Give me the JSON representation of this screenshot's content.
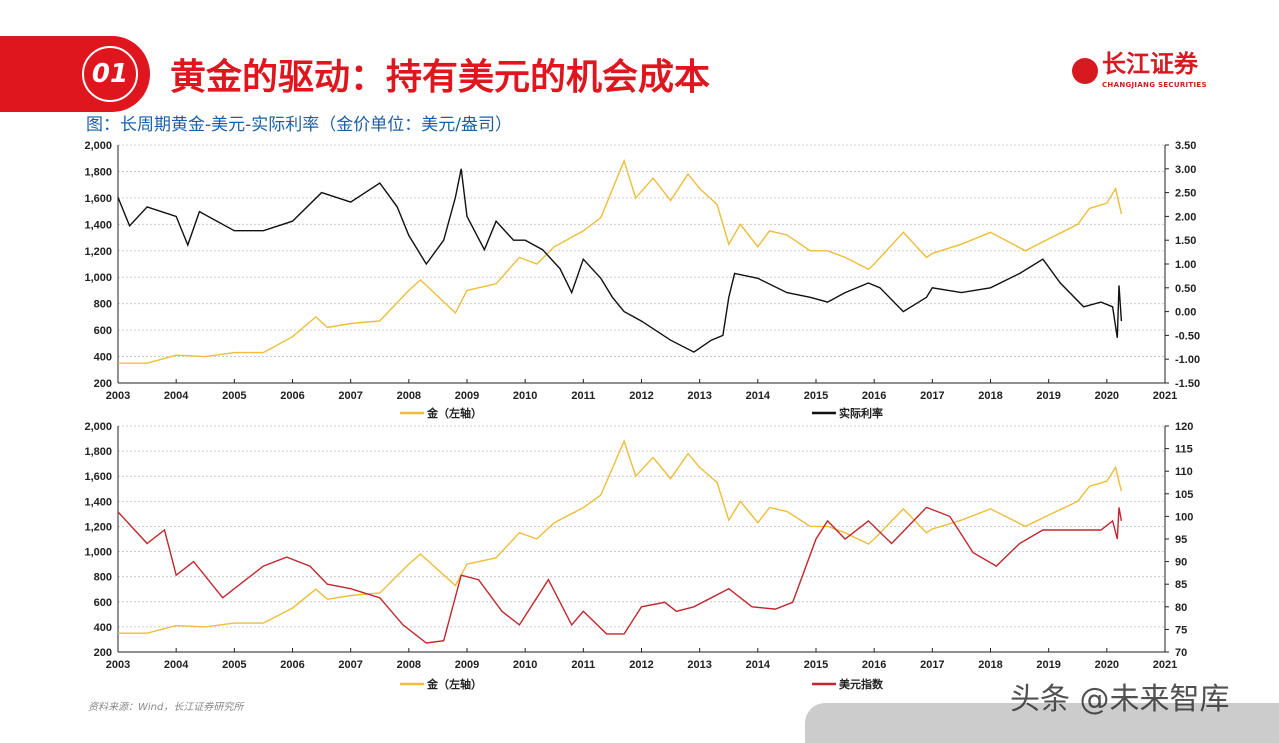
{
  "header": {
    "number": "01",
    "title": "黄金的驱动：持有美元的机会成本",
    "subtitle": "图：长周期黄金-美元-实际利率（金价单位：美元/盎司）",
    "logo_cn": "长江证券",
    "logo_en": "CHANGJIANG SECURITIES"
  },
  "footer": {
    "source": "资料来源：Wind，长江证券研究所",
    "watermark": "头条 @未来智库"
  },
  "colors": {
    "gold": "#eebd3a",
    "real_rate": "#111111",
    "usd": "#c1272d",
    "brand": "#e0161e"
  },
  "chart_data": [
    {
      "type": "line",
      "x_ticks": [
        "2003",
        "2004",
        "2005",
        "2006",
        "2007",
        "2008",
        "2009",
        "2010",
        "2011",
        "2012",
        "2013",
        "2014",
        "2015",
        "2016",
        "2017",
        "2018",
        "2019",
        "2020",
        "2021"
      ],
      "xlim": [
        2003,
        2021
      ],
      "ylim_left": [
        200,
        2000
      ],
      "ylim_right": [
        -1.5,
        3.5
      ],
      "left_ticks": [
        "200",
        "400",
        "600",
        "800",
        "1,000",
        "1,200",
        "1,400",
        "1,600",
        "1,800",
        "2,000"
      ],
      "right_ticks": [
        "-1.50",
        "-1.00",
        "-0.50",
        "0.00",
        "0.50",
        "1.00",
        "1.50",
        "2.00",
        "2.50",
        "3.00",
        "3.50"
      ],
      "grid": true,
      "legend": "bottom",
      "series": [
        {
          "name": "金（左轴）",
          "axis": "left",
          "color": "#eebd3a",
          "points": [
            [
              2003,
              350
            ],
            [
              2003.5,
              350
            ],
            [
              2004,
              410
            ],
            [
              2004.5,
              400
            ],
            [
              2005,
              430
            ],
            [
              2005.5,
              430
            ],
            [
              2006,
              550
            ],
            [
              2006.4,
              700
            ],
            [
              2006.6,
              620
            ],
            [
              2007,
              650
            ],
            [
              2007.5,
              670
            ],
            [
              2008,
              900
            ],
            [
              2008.2,
              980
            ],
            [
              2008.8,
              730
            ],
            [
              2009,
              900
            ],
            [
              2009.5,
              950
            ],
            [
              2009.9,
              1150
            ],
            [
              2010.2,
              1100
            ],
            [
              2010.5,
              1230
            ],
            [
              2011,
              1350
            ],
            [
              2011.3,
              1450
            ],
            [
              2011.7,
              1880
            ],
            [
              2011.9,
              1600
            ],
            [
              2012.2,
              1750
            ],
            [
              2012.5,
              1580
            ],
            [
              2012.8,
              1780
            ],
            [
              2013,
              1670
            ],
            [
              2013.3,
              1550
            ],
            [
              2013.5,
              1250
            ],
            [
              2013.7,
              1400
            ],
            [
              2014,
              1230
            ],
            [
              2014.2,
              1350
            ],
            [
              2014.5,
              1320
            ],
            [
              2014.9,
              1200
            ],
            [
              2015.2,
              1200
            ],
            [
              2015.5,
              1150
            ],
            [
              2015.9,
              1060
            ],
            [
              2016,
              1100
            ],
            [
              2016.5,
              1340
            ],
            [
              2016.9,
              1150
            ],
            [
              2017,
              1180
            ],
            [
              2017.5,
              1250
            ],
            [
              2018,
              1340
            ],
            [
              2018.6,
              1200
            ],
            [
              2019,
              1290
            ],
            [
              2019.5,
              1400
            ],
            [
              2019.7,
              1520
            ],
            [
              2020,
              1560
            ],
            [
              2020.15,
              1670
            ],
            [
              2020.25,
              1480
            ]
          ]
        },
        {
          "name": "实际利率",
          "axis": "right",
          "color": "#111111",
          "points": [
            [
              2003,
              2.4
            ],
            [
              2003.2,
              1.8
            ],
            [
              2003.5,
              2.2
            ],
            [
              2004,
              2.0
            ],
            [
              2004.2,
              1.4
            ],
            [
              2004.4,
              2.1
            ],
            [
              2005,
              1.7
            ],
            [
              2005.5,
              1.7
            ],
            [
              2006,
              1.9
            ],
            [
              2006.5,
              2.5
            ],
            [
              2007,
              2.3
            ],
            [
              2007.5,
              2.7
            ],
            [
              2007.8,
              2.2
            ],
            [
              2008,
              1.6
            ],
            [
              2008.3,
              1.0
            ],
            [
              2008.6,
              1.5
            ],
            [
              2008.8,
              2.4
            ],
            [
              2008.9,
              3.0
            ],
            [
              2009,
              2.0
            ],
            [
              2009.3,
              1.3
            ],
            [
              2009.5,
              1.9
            ],
            [
              2009.8,
              1.5
            ],
            [
              2010,
              1.5
            ],
            [
              2010.3,
              1.3
            ],
            [
              2010.6,
              0.9
            ],
            [
              2010.8,
              0.4
            ],
            [
              2011,
              1.1
            ],
            [
              2011.3,
              0.7
            ],
            [
              2011.5,
              0.3
            ],
            [
              2011.7,
              0.0
            ],
            [
              2012,
              -0.2
            ],
            [
              2012.5,
              -0.6
            ],
            [
              2012.9,
              -0.85
            ],
            [
              2013.2,
              -0.6
            ],
            [
              2013.4,
              -0.5
            ],
            [
              2013.5,
              0.3
            ],
            [
              2013.6,
              0.8
            ],
            [
              2014,
              0.7
            ],
            [
              2014.5,
              0.4
            ],
            [
              2014.9,
              0.3
            ],
            [
              2015.2,
              0.2
            ],
            [
              2015.5,
              0.4
            ],
            [
              2015.9,
              0.6
            ],
            [
              2016.1,
              0.5
            ],
            [
              2016.5,
              0.0
            ],
            [
              2016.9,
              0.3
            ],
            [
              2017,
              0.5
            ],
            [
              2017.5,
              0.4
            ],
            [
              2018,
              0.5
            ],
            [
              2018.5,
              0.8
            ],
            [
              2018.9,
              1.1
            ],
            [
              2019.2,
              0.6
            ],
            [
              2019.6,
              0.1
            ],
            [
              2019.9,
              0.2
            ],
            [
              2020.1,
              0.1
            ],
            [
              2020.18,
              -0.55
            ],
            [
              2020.21,
              0.55
            ],
            [
              2020.25,
              -0.2
            ]
          ]
        }
      ]
    },
    {
      "type": "line",
      "x_ticks": [
        "2003",
        "2004",
        "2005",
        "2006",
        "2007",
        "2008",
        "2009",
        "2010",
        "2011",
        "2012",
        "2013",
        "2014",
        "2015",
        "2016",
        "2017",
        "2018",
        "2019",
        "2020",
        "2021"
      ],
      "xlim": [
        2003,
        2021
      ],
      "ylim_left": [
        200,
        2000
      ],
      "ylim_right": [
        70,
        120
      ],
      "left_ticks": [
        "200",
        "400",
        "600",
        "800",
        "1,000",
        "1,200",
        "1,400",
        "1,600",
        "1,800",
        "2,000"
      ],
      "right_ticks": [
        "70",
        "75",
        "80",
        "85",
        "90",
        "95",
        "100",
        "105",
        "110",
        "115",
        "120"
      ],
      "grid": true,
      "legend": "bottom",
      "series": [
        {
          "name": "金（左轴）",
          "axis": "left",
          "color": "#eebd3a",
          "ref": "gold"
        },
        {
          "name": "美元指数",
          "axis": "right",
          "color": "#c1272d",
          "points": [
            [
              2003,
              101
            ],
            [
              2003.5,
              94
            ],
            [
              2003.8,
              97
            ],
            [
              2004,
              87
            ],
            [
              2004.3,
              90
            ],
            [
              2004.8,
              82
            ],
            [
              2005,
              84
            ],
            [
              2005.5,
              89
            ],
            [
              2005.9,
              91
            ],
            [
              2006.3,
              89
            ],
            [
              2006.6,
              85
            ],
            [
              2007,
              84
            ],
            [
              2007.5,
              82
            ],
            [
              2007.9,
              76
            ],
            [
              2008.3,
              72
            ],
            [
              2008.6,
              72.5
            ],
            [
              2008.9,
              87
            ],
            [
              2009.2,
              86
            ],
            [
              2009.6,
              79
            ],
            [
              2009.9,
              76
            ],
            [
              2010.4,
              86
            ],
            [
              2010.8,
              76
            ],
            [
              2011,
              79
            ],
            [
              2011.4,
              74
            ],
            [
              2011.7,
              74
            ],
            [
              2012,
              80
            ],
            [
              2012.4,
              81
            ],
            [
              2012.6,
              79
            ],
            [
              2012.9,
              80
            ],
            [
              2013.5,
              84
            ],
            [
              2013.9,
              80
            ],
            [
              2014.3,
              79.5
            ],
            [
              2014.6,
              81
            ],
            [
              2015,
              95
            ],
            [
              2015.2,
              99
            ],
            [
              2015.5,
              95
            ],
            [
              2015.9,
              99
            ],
            [
              2016.3,
              94
            ],
            [
              2016.9,
              102
            ],
            [
              2017.3,
              100
            ],
            [
              2017.7,
              92
            ],
            [
              2018.1,
              89
            ],
            [
              2018.5,
              94
            ],
            [
              2018.9,
              97
            ],
            [
              2019.5,
              97
            ],
            [
              2019.9,
              97
            ],
            [
              2020.1,
              99
            ],
            [
              2020.18,
              95
            ],
            [
              2020.21,
              102
            ],
            [
              2020.25,
              99
            ]
          ]
        }
      ]
    }
  ]
}
